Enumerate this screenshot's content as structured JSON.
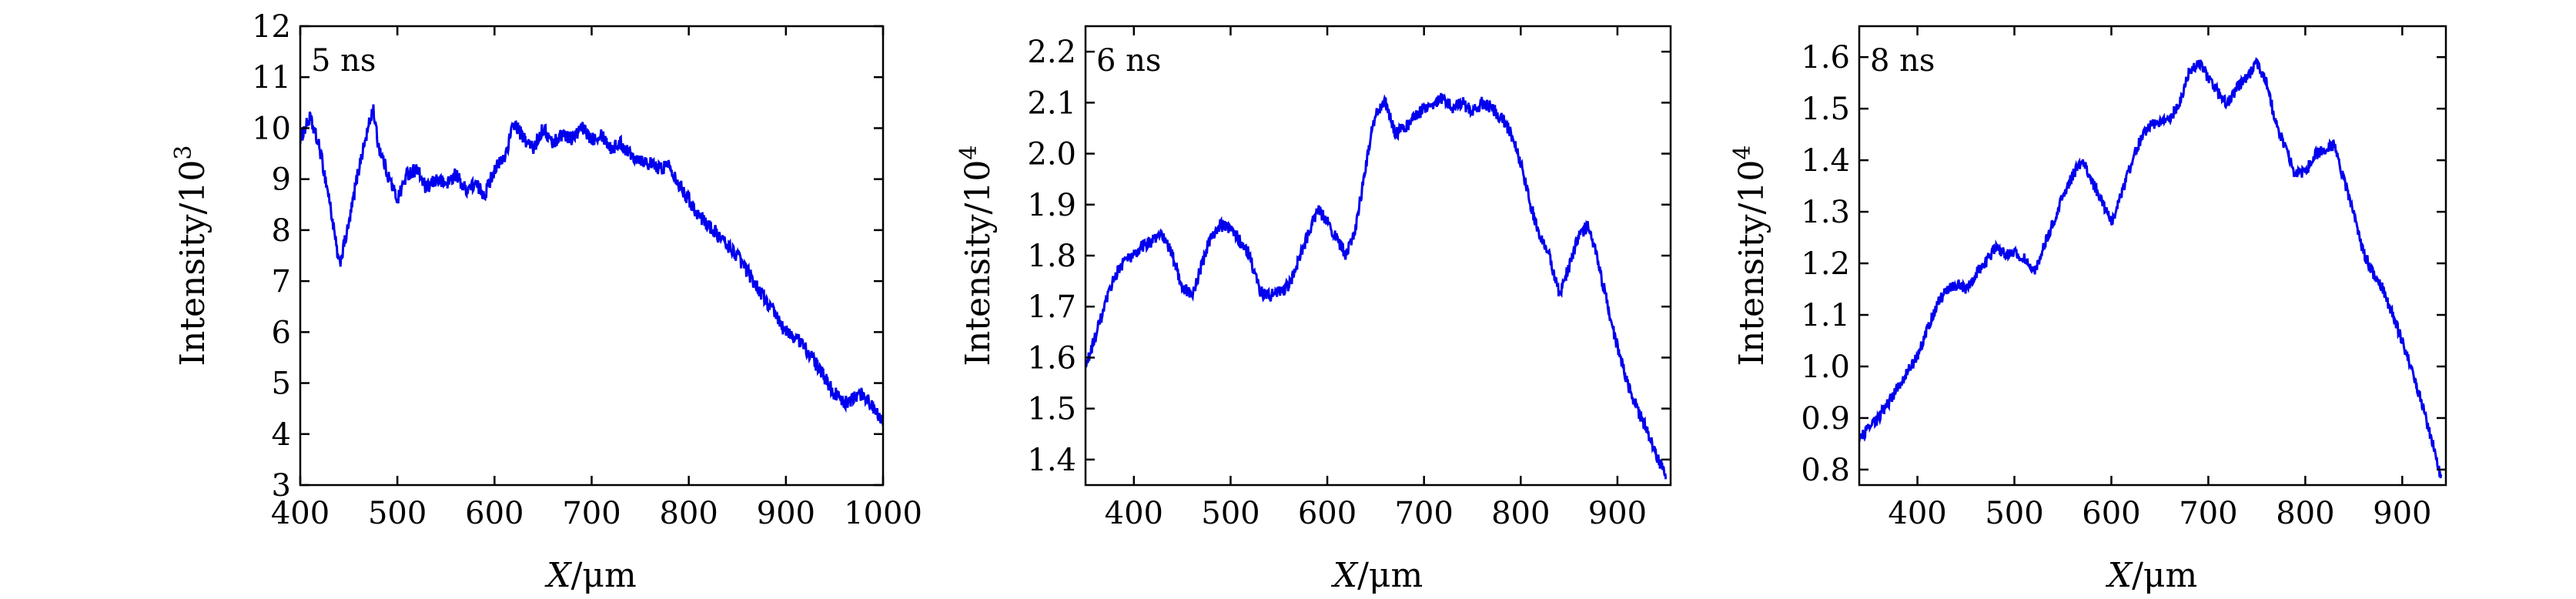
{
  "chart_data": [
    {
      "type": "line",
      "annotation": "5 ns",
      "xlabel_var": "X",
      "xlabel_unit": "/μm",
      "ylabel_main": "Intensity/10",
      "ylabel_exp": "3",
      "xlim": [
        400,
        1000
      ],
      "ylim": [
        3,
        12
      ],
      "xticks": [
        400,
        500,
        600,
        700,
        800,
        900,
        1000
      ],
      "yticks": [
        3,
        4,
        5,
        6,
        7,
        8,
        9,
        10,
        11,
        12
      ],
      "grid": false,
      "color": "#0000ee",
      "noise": 0.28,
      "x": [
        400,
        410,
        420,
        430,
        440,
        450,
        460,
        470,
        475,
        480,
        490,
        500,
        510,
        520,
        530,
        540,
        550,
        560,
        570,
        580,
        590,
        600,
        610,
        620,
        630,
        640,
        650,
        660,
        670,
        680,
        690,
        700,
        710,
        720,
        730,
        740,
        750,
        760,
        770,
        780,
        790,
        800,
        810,
        820,
        830,
        840,
        850,
        860,
        870,
        880,
        890,
        900,
        910,
        920,
        930,
        940,
        950,
        960,
        970,
        980,
        990,
        1000
      ],
      "y": [
        9.8,
        10.2,
        9.6,
        8.6,
        7.3,
        8.1,
        9.2,
        10.0,
        10.4,
        9.7,
        9.1,
        8.6,
        9.1,
        9.2,
        8.8,
        9.0,
        8.9,
        9.1,
        8.8,
        8.9,
        8.7,
        9.2,
        9.4,
        10.1,
        9.8,
        9.6,
        10.0,
        9.7,
        9.9,
        9.8,
        10.0,
        9.8,
        9.9,
        9.6,
        9.7,
        9.5,
        9.4,
        9.3,
        9.2,
        9.3,
        8.9,
        8.6,
        8.3,
        8.1,
        7.9,
        7.7,
        7.5,
        7.2,
        6.9,
        6.6,
        6.3,
        6.0,
        5.9,
        5.7,
        5.4,
        5.1,
        4.8,
        4.6,
        4.7,
        4.8,
        4.5,
        4.3
      ]
    },
    {
      "type": "line",
      "annotation": "6 ns",
      "xlabel_var": "X",
      "xlabel_unit": "/μm",
      "ylabel_main": "Intensity/10",
      "ylabel_exp": "4",
      "xlim": [
        350,
        955
      ],
      "ylim": [
        1.35,
        2.25
      ],
      "xticks": [
        400,
        500,
        600,
        700,
        800,
        900
      ],
      "yticks": [
        1.4,
        1.5,
        1.6,
        1.7,
        1.8,
        1.9,
        2.0,
        2.1,
        2.2
      ],
      "grid": false,
      "color": "#0000ee",
      "noise": 0.025,
      "x": [
        350,
        360,
        370,
        380,
        390,
        400,
        410,
        420,
        430,
        440,
        450,
        460,
        470,
        480,
        490,
        500,
        510,
        520,
        530,
        540,
        550,
        560,
        570,
        580,
        590,
        600,
        610,
        620,
        630,
        640,
        650,
        660,
        670,
        680,
        690,
        700,
        710,
        720,
        730,
        740,
        750,
        760,
        770,
        780,
        790,
        800,
        810,
        820,
        830,
        840,
        850,
        860,
        870,
        880,
        890,
        900,
        910,
        920,
        930,
        940,
        950
      ],
      "y": [
        1.58,
        1.64,
        1.7,
        1.76,
        1.79,
        1.8,
        1.82,
        1.83,
        1.84,
        1.8,
        1.74,
        1.72,
        1.78,
        1.84,
        1.86,
        1.85,
        1.83,
        1.8,
        1.73,
        1.72,
        1.73,
        1.74,
        1.79,
        1.84,
        1.89,
        1.87,
        1.83,
        1.8,
        1.86,
        1.98,
        2.08,
        2.1,
        2.04,
        2.05,
        2.07,
        2.09,
        2.1,
        2.11,
        2.09,
        2.1,
        2.08,
        2.1,
        2.09,
        2.07,
        2.04,
        1.98,
        1.9,
        1.84,
        1.8,
        1.72,
        1.78,
        1.84,
        1.86,
        1.79,
        1.7,
        1.62,
        1.55,
        1.5,
        1.46,
        1.41,
        1.37
      ]
    },
    {
      "type": "line",
      "annotation": "8 ns",
      "xlabel_var": "X",
      "xlabel_unit": "/μm",
      "ylabel_main": "Intensity/10",
      "ylabel_exp": "4",
      "xlim": [
        340,
        945
      ],
      "ylim": [
        0.77,
        1.66
      ],
      "xticks": [
        400,
        500,
        600,
        700,
        800,
        900
      ],
      "yticks": [
        0.8,
        0.9,
        1.0,
        1.1,
        1.2,
        1.3,
        1.4,
        1.5,
        1.6
      ],
      "grid": false,
      "color": "#0000ee",
      "noise": 0.022,
      "x": [
        340,
        350,
        360,
        370,
        380,
        390,
        400,
        410,
        420,
        430,
        440,
        450,
        460,
        470,
        480,
        490,
        500,
        510,
        520,
        530,
        540,
        550,
        560,
        570,
        580,
        590,
        600,
        610,
        620,
        630,
        640,
        650,
        660,
        670,
        680,
        690,
        700,
        710,
        720,
        730,
        740,
        750,
        760,
        770,
        780,
        790,
        800,
        810,
        820,
        830,
        840,
        850,
        860,
        870,
        880,
        890,
        900,
        910,
        920,
        930,
        940
      ],
      "y": [
        0.86,
        0.88,
        0.9,
        0.93,
        0.96,
        0.99,
        1.02,
        1.07,
        1.12,
        1.15,
        1.16,
        1.15,
        1.18,
        1.2,
        1.23,
        1.22,
        1.22,
        1.21,
        1.18,
        1.23,
        1.28,
        1.33,
        1.37,
        1.4,
        1.36,
        1.32,
        1.28,
        1.33,
        1.39,
        1.44,
        1.47,
        1.47,
        1.48,
        1.51,
        1.57,
        1.59,
        1.56,
        1.53,
        1.51,
        1.54,
        1.56,
        1.59,
        1.55,
        1.47,
        1.42,
        1.37,
        1.38,
        1.41,
        1.42,
        1.43,
        1.36,
        1.3,
        1.22,
        1.18,
        1.15,
        1.1,
        1.05,
        0.99,
        0.93,
        0.86,
        0.79
      ]
    }
  ]
}
